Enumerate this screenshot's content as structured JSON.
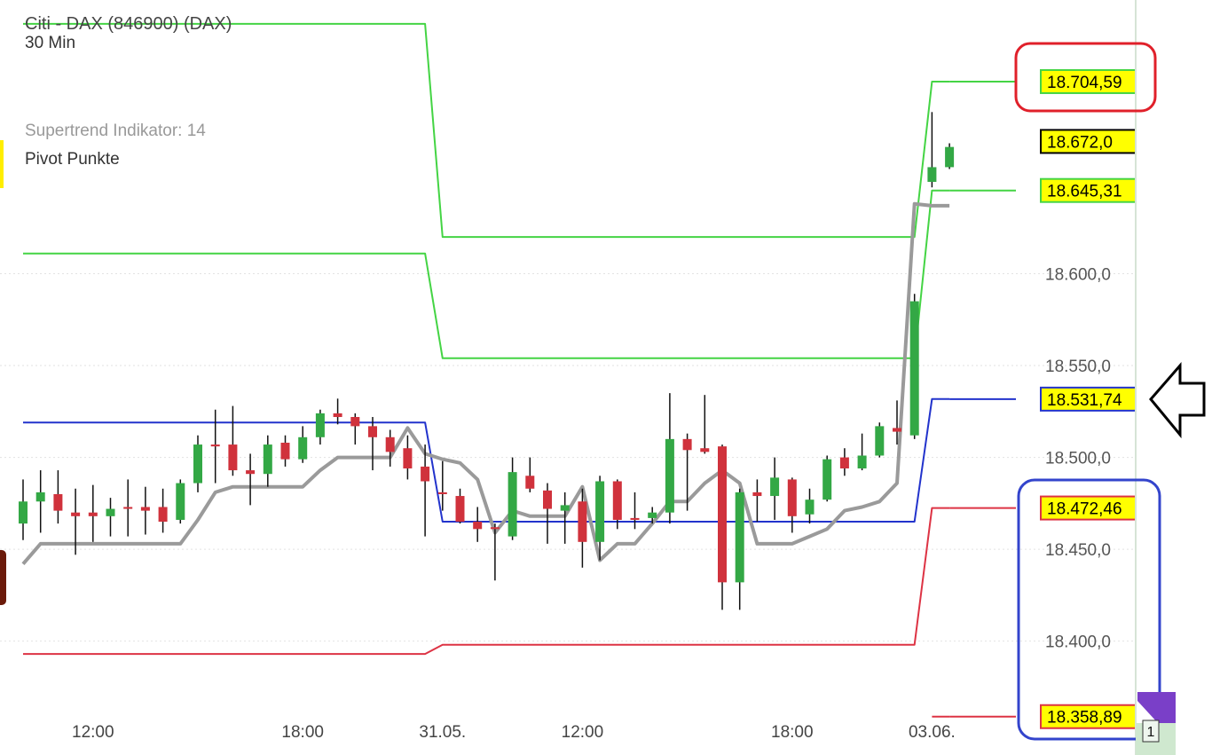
{
  "chart_data": {
    "type": "candlestick",
    "title": "Citi - DAX (846900) (DAX)",
    "subtitle": "30 Min",
    "indicator_labels": [
      "Supertrend Indikator: 14",
      "Pivot Punkte"
    ],
    "categories": [
      null,
      null,
      null,
      null,
      "12:00",
      null,
      null,
      null,
      null,
      null,
      null,
      null,
      null,
      null,
      null,
      null,
      "18:00",
      null,
      null,
      null,
      null,
      null,
      null,
      null,
      "31.05.",
      null,
      null,
      null,
      null,
      null,
      null,
      null,
      "12:00",
      null,
      null,
      null,
      null,
      null,
      null,
      null,
      null,
      null,
      null,
      null,
      "18:00",
      null,
      null,
      null,
      null,
      null,
      null,
      null,
      "03.06.",
      null
    ],
    "open": [
      18464,
      18476,
      18480,
      18470,
      18470,
      18468,
      18473,
      18473,
      18473,
      18466,
      18486,
      18507,
      18507,
      18493,
      18491,
      18508,
      18499,
      18511,
      18524,
      18522,
      18517,
      18511,
      18505,
      18495,
      18481,
      18479,
      18465,
      18462,
      18457,
      18490,
      18482,
      18471,
      18476,
      18454,
      18487,
      18467,
      18467,
      18470,
      18510,
      18505,
      18506,
      18432,
      18481,
      18479,
      18488,
      18469,
      18477,
      18500,
      18494,
      18501,
      18516,
      18512,
      18650,
      18658
    ],
    "high": [
      18488,
      18493,
      18493,
      18483,
      18485,
      18478,
      18488,
      18484,
      18483,
      18488,
      18512,
      18526,
      18528,
      18502,
      18512,
      18512,
      18517,
      18526,
      18532,
      18524,
      18522,
      18515,
      18512,
      18507,
      18498,
      18483,
      18473,
      18464,
      18500,
      18500,
      18486,
      18481,
      18483,
      18490,
      18488,
      18481,
      18473,
      18535,
      18513,
      18534,
      18507,
      18483,
      18488,
      18500,
      18489,
      18483,
      18501,
      18505,
      18513,
      18519,
      18531,
      18589,
      18688,
      18671
    ],
    "low": [
      18455,
      18459,
      18464,
      18447,
      18454,
      18457,
      18457,
      18458,
      18459,
      18464,
      18481,
      18486,
      18490,
      18474,
      18484,
      18495,
      18497,
      18507,
      18518,
      18507,
      18493,
      18495,
      18488,
      18457,
      18471,
      18464,
      18454,
      18433,
      18455,
      18481,
      18453,
      18453,
      18440,
      18444,
      18461,
      18461,
      18464,
      18464,
      18471,
      18502,
      18417,
      18417,
      18465,
      18466,
      18459,
      18464,
      18476,
      18490,
      18493,
      18500,
      18507,
      18510,
      18647,
      18657
    ],
    "close": [
      18476,
      18481,
      18471,
      18468,
      18468,
      18472,
      18472,
      18471,
      18465,
      18486,
      18507,
      18506,
      18493,
      18491,
      18507,
      18499,
      18511,
      18524,
      18522,
      18517,
      18511,
      18503,
      18494,
      18487,
      18480,
      18465,
      18461,
      18461,
      18492,
      18483,
      18472,
      18474,
      18454,
      18487,
      18466,
      18466,
      18470,
      18510,
      18504,
      18503,
      18432,
      18481,
      18479,
      18489,
      18468,
      18477,
      18499,
      18494,
      18501,
      18517,
      18514,
      18585,
      18658,
      18669
    ],
    "up_color": "#33a845",
    "down_color": "#d0323c",
    "wick_color": "#111111",
    "supertrend": {
      "color": "#9a9a9a",
      "values": [
        18442,
        18453,
        18453,
        18453,
        18453,
        18453,
        18453,
        18453,
        18453,
        18453,
        18466,
        18481,
        18484,
        18484,
        18484,
        18484,
        18484,
        18493,
        18500,
        18500,
        18500,
        18500,
        18516,
        18502,
        18499,
        18497,
        18488,
        18459,
        18471,
        18468,
        18468,
        18468,
        18484,
        18444,
        18453,
        18453,
        18464,
        18476,
        18476,
        18486,
        18493,
        18486,
        18453,
        18453,
        18453,
        18457,
        18461,
        18471,
        18473,
        18476,
        18486,
        18638,
        18637,
        18637
      ]
    },
    "pivot_lines": [
      {
        "color": "#44d444",
        "values": [
          18736,
          18736,
          18736,
          18736,
          18736,
          18736,
          18736,
          18736,
          18736,
          18736,
          18736,
          18736,
          18736,
          18736,
          18736,
          18736,
          18736,
          18736,
          18736,
          18736,
          18736,
          18736,
          18736,
          18736,
          18620,
          18620,
          18620,
          18620,
          18620,
          18620,
          18620,
          18620,
          18620,
          18620,
          18620,
          18620,
          18620,
          18620,
          18620,
          18620,
          18620,
          18620,
          18620,
          18620,
          18620,
          18620,
          18620,
          18620,
          18620,
          18620,
          18620,
          18620,
          18704.59,
          18704.59
        ]
      },
      {
        "color": "#44d444",
        "values": [
          18611,
          18611,
          18611,
          18611,
          18611,
          18611,
          18611,
          18611,
          18611,
          18611,
          18611,
          18611,
          18611,
          18611,
          18611,
          18611,
          18611,
          18611,
          18611,
          18611,
          18611,
          18611,
          18611,
          18611,
          18554,
          18554,
          18554,
          18554,
          18554,
          18554,
          18554,
          18554,
          18554,
          18554,
          18554,
          18554,
          18554,
          18554,
          18554,
          18554,
          18554,
          18554,
          18554,
          18554,
          18554,
          18554,
          18554,
          18554,
          18554,
          18554,
          18554,
          18554,
          18645.31,
          18645.31
        ]
      },
      {
        "color": "#2233cc",
        "values": [
          18519,
          18519,
          18519,
          18519,
          18519,
          18519,
          18519,
          18519,
          18519,
          18519,
          18519,
          18519,
          18519,
          18519,
          18519,
          18519,
          18519,
          18519,
          18519,
          18519,
          18519,
          18519,
          18519,
          18519,
          18465,
          18465,
          18465,
          18465,
          18465,
          18465,
          18465,
          18465,
          18465,
          18465,
          18465,
          18465,
          18465,
          18465,
          18465,
          18465,
          18465,
          18465,
          18465,
          18465,
          18465,
          18465,
          18465,
          18465,
          18465,
          18465,
          18465,
          18465,
          18531.74,
          18531.74
        ]
      },
      {
        "color": "#dd3344",
        "values": [
          18393,
          18393,
          18393,
          18393,
          18393,
          18393,
          18393,
          18393,
          18393,
          18393,
          18393,
          18393,
          18393,
          18393,
          18393,
          18393,
          18393,
          18393,
          18393,
          18393,
          18393,
          18393,
          18393,
          18393,
          18398,
          18398,
          18398,
          18398,
          18398,
          18398,
          18398,
          18398,
          18398,
          18398,
          18398,
          18398,
          18398,
          18398,
          18398,
          18398,
          18398,
          18398,
          18398,
          18398,
          18398,
          18398,
          18398,
          18398,
          18398,
          18398,
          18398,
          18398,
          18472.46,
          18472.46
        ]
      },
      {
        "color": "#dd3344",
        "values": [
          null,
          null,
          null,
          null,
          null,
          null,
          null,
          null,
          null,
          null,
          null,
          null,
          null,
          null,
          null,
          null,
          null,
          null,
          null,
          null,
          null,
          null,
          null,
          null,
          null,
          null,
          null,
          null,
          null,
          null,
          null,
          null,
          null,
          null,
          null,
          null,
          null,
          null,
          null,
          null,
          null,
          null,
          null,
          null,
          null,
          null,
          null,
          null,
          null,
          null,
          null,
          null,
          18358.89,
          18358.89
        ]
      }
    ],
    "price_labels": [
      {
        "value": 18704.59,
        "label": "18.704,59",
        "color": "#44d444"
      },
      {
        "value": 18672,
        "label": "18.672,0",
        "color": "#000000"
      },
      {
        "value": 18645.31,
        "label": "18.645,31",
        "color": "#44d444"
      },
      {
        "value": 18531.74,
        "label": "18.531,74",
        "color": "#2233cc"
      },
      {
        "value": 18472.46,
        "label": "18.472,46",
        "color": "#dd3344"
      },
      {
        "value": 18358.89,
        "label": "18.358,89",
        "color": "#dd3344"
      }
    ],
    "ylim": [
      18338,
      18749
    ],
    "yticks": [
      {
        "value": 18400,
        "label": "18.400,0"
      },
      {
        "value": 18450,
        "label": "18.450,0"
      },
      {
        "value": 18500,
        "label": "18.500,0"
      },
      {
        "value": 18550,
        "label": "18.550,0"
      },
      {
        "value": 18600,
        "label": "18.600,0"
      }
    ],
    "grid": true
  },
  "page_indicator": "1"
}
